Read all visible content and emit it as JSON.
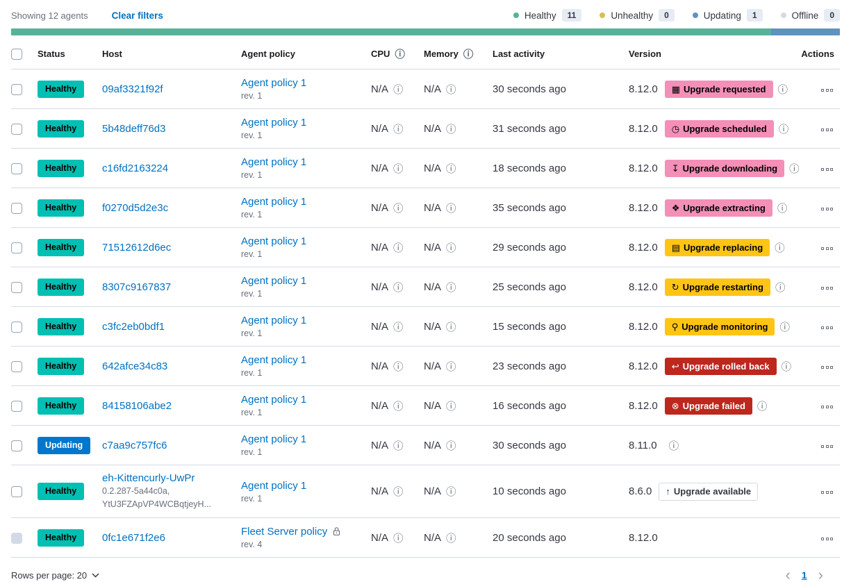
{
  "header": {
    "showing_label": "Showing 12 agents",
    "clear_filters_label": "Clear filters",
    "legend": [
      {
        "label": "Healthy",
        "count": "11",
        "color": "#54B399"
      },
      {
        "label": "Unhealthy",
        "count": "0",
        "color": "#D6BF57"
      },
      {
        "label": "Updating",
        "count": "1",
        "color": "#6092C0"
      },
      {
        "label": "Offline",
        "count": "0",
        "color": "#D3DAE6"
      }
    ],
    "health_bar_segments": [
      {
        "status": "healthy",
        "color": "#54B399",
        "percent": 91.67
      },
      {
        "status": "updating",
        "color": "#6092C0",
        "percent": 8.33
      }
    ]
  },
  "table": {
    "headers": {
      "status": "Status",
      "host": "Host",
      "policy": "Agent policy",
      "cpu": "CPU",
      "memory": "Memory",
      "last_activity": "Last activity",
      "version": "Version",
      "actions": "Actions"
    },
    "badge_variants": {
      "accent": {
        "bg": "#F48FB8",
        "text": "#000000",
        "border": "transparent"
      },
      "warning": {
        "bg": "#FEC514",
        "text": "#000000",
        "border": "transparent"
      },
      "danger": {
        "bg": "#BD271E",
        "text": "#FFFFFF",
        "border": "transparent"
      },
      "hollow": {
        "bg": "#FFFFFF",
        "text": "#343741",
        "border": "#D3DAE6"
      }
    },
    "status_variants": {
      "Healthy": {
        "bg": "#00BFB3",
        "text": "#000000"
      },
      "Updating": {
        "bg": "#0077CC",
        "text": "#FFFFFF"
      }
    },
    "rows": [
      {
        "status": "Healthy",
        "host": "09af3321f92f",
        "host_sub": [],
        "policy": "Agent policy 1",
        "policy_rev": "rev. 1",
        "policy_locked": false,
        "cpu": "N/A",
        "memory": "N/A",
        "last_activity": "30 seconds ago",
        "version": "8.12.0",
        "upgrade": {
          "label": "Upgrade requested",
          "variant": "accent",
          "icon": "calendar-icon"
        },
        "version_info": true,
        "checkbox_disabled": false
      },
      {
        "status": "Healthy",
        "host": "5b48deff76d3",
        "host_sub": [],
        "policy": "Agent policy 1",
        "policy_rev": "rev. 1",
        "policy_locked": false,
        "cpu": "N/A",
        "memory": "N/A",
        "last_activity": "31 seconds ago",
        "version": "8.12.0",
        "upgrade": {
          "label": "Upgrade scheduled",
          "variant": "accent",
          "icon": "clock-icon"
        },
        "version_info": true,
        "checkbox_disabled": false
      },
      {
        "status": "Healthy",
        "host": "c16fd2163224",
        "host_sub": [],
        "policy": "Agent policy 1",
        "policy_rev": "rev. 1",
        "policy_locked": false,
        "cpu": "N/A",
        "memory": "N/A",
        "last_activity": "18 seconds ago",
        "version": "8.12.0",
        "upgrade": {
          "label": "Upgrade downloading",
          "variant": "accent",
          "icon": "download-icon"
        },
        "version_info": true,
        "checkbox_disabled": false
      },
      {
        "status": "Healthy",
        "host": "f0270d5d2e3c",
        "host_sub": [],
        "policy": "Agent policy 1",
        "policy_rev": "rev. 1",
        "policy_locked": false,
        "cpu": "N/A",
        "memory": "N/A",
        "last_activity": "35 seconds ago",
        "version": "8.12.0",
        "upgrade": {
          "label": "Upgrade extracting",
          "variant": "accent",
          "icon": "package-icon"
        },
        "version_info": true,
        "checkbox_disabled": false
      },
      {
        "status": "Healthy",
        "host": "71512612d6ec",
        "host_sub": [],
        "policy": "Agent policy 1",
        "policy_rev": "rev. 1",
        "policy_locked": false,
        "cpu": "N/A",
        "memory": "N/A",
        "last_activity": "29 seconds ago",
        "version": "8.12.0",
        "upgrade": {
          "label": "Upgrade replacing",
          "variant": "warning",
          "icon": "document-icon"
        },
        "version_info": true,
        "checkbox_disabled": false
      },
      {
        "status": "Healthy",
        "host": "8307c9167837",
        "host_sub": [],
        "policy": "Agent policy 1",
        "policy_rev": "rev. 1",
        "policy_locked": false,
        "cpu": "N/A",
        "memory": "N/A",
        "last_activity": "25 seconds ago",
        "version": "8.12.0",
        "upgrade": {
          "label": "Upgrade restarting",
          "variant": "warning",
          "icon": "refresh-icon"
        },
        "version_info": true,
        "checkbox_disabled": false
      },
      {
        "status": "Healthy",
        "host": "c3fc2eb0bdf1",
        "host_sub": [],
        "policy": "Agent policy 1",
        "policy_rev": "rev. 1",
        "policy_locked": false,
        "cpu": "N/A",
        "memory": "N/A",
        "last_activity": "15 seconds ago",
        "version": "8.12.0",
        "upgrade": {
          "label": "Upgrade monitoring",
          "variant": "warning",
          "icon": "search-icon"
        },
        "version_info": true,
        "checkbox_disabled": false
      },
      {
        "status": "Healthy",
        "host": "642afce34c83",
        "host_sub": [],
        "policy": "Agent policy 1",
        "policy_rev": "rev. 1",
        "policy_locked": false,
        "cpu": "N/A",
        "memory": "N/A",
        "last_activity": "23 seconds ago",
        "version": "8.12.0",
        "upgrade": {
          "label": "Upgrade rolled back",
          "variant": "danger",
          "icon": "return-arrow-icon"
        },
        "version_info": true,
        "checkbox_disabled": false
      },
      {
        "status": "Healthy",
        "host": "84158106abe2",
        "host_sub": [],
        "policy": "Agent policy 1",
        "policy_rev": "rev. 1",
        "policy_locked": false,
        "cpu": "N/A",
        "memory": "N/A",
        "last_activity": "16 seconds ago",
        "version": "8.12.0",
        "upgrade": {
          "label": "Upgrade failed",
          "variant": "danger",
          "icon": "cross-circle-icon"
        },
        "version_info": true,
        "checkbox_disabled": false
      },
      {
        "status": "Updating",
        "host": "c7aa9c757fc6",
        "host_sub": [],
        "policy": "Agent policy 1",
        "policy_rev": "rev. 1",
        "policy_locked": false,
        "cpu": "N/A",
        "memory": "N/A",
        "last_activity": "30 seconds ago",
        "version": "8.11.0",
        "upgrade": null,
        "version_info": true,
        "checkbox_disabled": false
      },
      {
        "status": "Healthy",
        "host": "eh-Kittencurly-UwPr",
        "host_sub": [
          "0.2.287-5a44c0a,",
          "YtU3FZApVP4WCBqtjeyH..."
        ],
        "policy": "Agent policy 1",
        "policy_rev": "rev. 1",
        "policy_locked": false,
        "cpu": "N/A",
        "memory": "N/A",
        "last_activity": "10 seconds ago",
        "version": "8.6.0",
        "upgrade": {
          "label": "Upgrade available",
          "variant": "hollow",
          "icon": "arrow-up-icon"
        },
        "version_info": false,
        "checkbox_disabled": false
      },
      {
        "status": "Healthy",
        "host": "0fc1e671f2e6",
        "host_sub": [],
        "policy": "Fleet Server policy",
        "policy_rev": "rev. 4",
        "policy_locked": true,
        "cpu": "N/A",
        "memory": "N/A",
        "last_activity": "20 seconds ago",
        "version": "8.12.0",
        "upgrade": null,
        "version_info": false,
        "checkbox_disabled": true
      }
    ]
  },
  "footer": {
    "rows_per_page_label": "Rows per page: 20",
    "page": "1"
  },
  "icons": {
    "calendar-icon": "▦",
    "clock-icon": "◷",
    "download-icon": "↧",
    "package-icon": "❖",
    "document-icon": "▤",
    "refresh-icon": "↻",
    "search-icon": "⚲",
    "return-arrow-icon": "↩",
    "cross-circle-icon": "⊗",
    "arrow-up-icon": "↑",
    "info-icon": "ⓘ",
    "chevron-left-icon": "‹",
    "chevron-right-icon": "›"
  }
}
